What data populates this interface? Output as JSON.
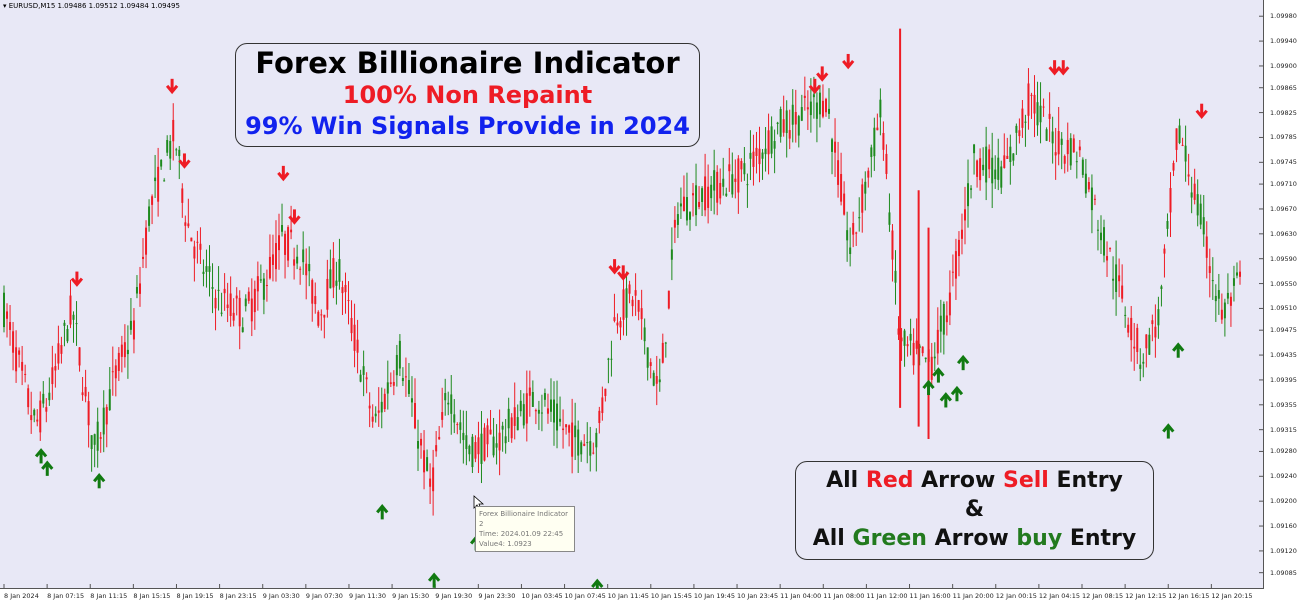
{
  "header": {
    "symbol_line": "▾ EURUSD,M15  1.09486 1.09512 1.09484 1.09495"
  },
  "title_box": {
    "title": "Forex Billionaire Indicator",
    "subtitle1": "100% Non Repaint",
    "subtitle2": "99% Win Signals Provide in 2024"
  },
  "legend_box": {
    "line1": {
      "w1": "All ",
      "red1": "Red",
      "w2": " Arrow ",
      "red2": "Sell",
      "w3": " Entry"
    },
    "line2": "&",
    "line3": {
      "w1": "All ",
      "green1": "Green",
      "w2": " Arrow ",
      "green2": "buy",
      "w3": " Entry"
    }
  },
  "tooltip": {
    "line1": "Forex Billionaire Indicator",
    "line2": "2",
    "line3": "Time: 2024.01.09 22:45",
    "line4": "Value4: 1.0923"
  },
  "colors": {
    "background": "#e8e8f6",
    "bull": "#1e8a1e",
    "bear": "#ee1c25",
    "sell_arrow": "#ee1c25",
    "buy_arrow": "#117a11"
  },
  "chart_data": {
    "type": "candlestick",
    "symbol": "EURUSD",
    "timeframe": "M15",
    "ylim": [
      1.0907,
      1.0999
    ],
    "y_ticks": [
      "1.09980",
      "1.09940",
      "1.09900",
      "1.09865",
      "1.09825",
      "1.09785",
      "1.09745",
      "1.09710",
      "1.09670",
      "1.09630",
      "1.09590",
      "1.09550",
      "1.09510",
      "1.09475",
      "1.09435",
      "1.09395",
      "1.09355",
      "1.09315",
      "1.09280",
      "1.09240",
      "1.09200",
      "1.09160",
      "1.09120",
      "1.09085"
    ],
    "x_ticks": [
      "8 Jan 2024",
      "8 Jan 07:15",
      "8 Jan 11:15",
      "8 Jan 15:15",
      "8 Jan 19:15",
      "8 Jan 23:15",
      "9 Jan 03:30",
      "9 Jan 07:30",
      "9 Jan 11:30",
      "9 Jan 15:30",
      "9 Jan 19:30",
      "9 Jan 23:30",
      "10 Jan 03:45",
      "10 Jan 07:45",
      "10 Jan 11:45",
      "10 Jan 15:45",
      "10 Jan 19:45",
      "10 Jan 23:45",
      "11 Jan 04:00",
      "11 Jan 08:00",
      "11 Jan 12:00",
      "11 Jan 16:00",
      "11 Jan 20:00",
      "12 Jan 00:15",
      "12 Jan 04:15",
      "12 Jan 08:15",
      "12 Jan 12:15",
      "12 Jan 16:15",
      "12 Jan 20:15"
    ],
    "price_path": [
      {
        "t": 0,
        "p": 1.0951
      },
      {
        "t": 0.025,
        "p": 1.0932
      },
      {
        "t": 0.035,
        "p": 1.0936
      },
      {
        "t": 0.055,
        "p": 1.0951
      },
      {
        "t": 0.073,
        "p": 1.0928
      },
      {
        "t": 0.09,
        "p": 1.094
      },
      {
        "t": 0.105,
        "p": 1.0948
      },
      {
        "t": 0.118,
        "p": 1.0967
      },
      {
        "t": 0.138,
        "p": 1.0979
      },
      {
        "t": 0.148,
        "p": 1.0965
      },
      {
        "t": 0.16,
        "p": 1.0958
      },
      {
        "t": 0.175,
        "p": 1.0952
      },
      {
        "t": 0.195,
        "p": 1.095
      },
      {
        "t": 0.21,
        "p": 1.0955
      },
      {
        "t": 0.225,
        "p": 1.0962
      },
      {
        "t": 0.24,
        "p": 1.096
      },
      {
        "t": 0.255,
        "p": 1.095
      },
      {
        "t": 0.27,
        "p": 1.0958
      },
      {
        "t": 0.3,
        "p": 1.0932
      },
      {
        "t": 0.32,
        "p": 1.0944
      },
      {
        "t": 0.345,
        "p": 1.0922
      },
      {
        "t": 0.36,
        "p": 1.0938
      },
      {
        "t": 0.375,
        "p": 1.0928
      },
      {
        "t": 0.4,
        "p": 1.093
      },
      {
        "t": 0.43,
        "p": 1.0937
      },
      {
        "t": 0.46,
        "p": 1.093
      },
      {
        "t": 0.48,
        "p": 1.093
      },
      {
        "t": 0.495,
        "p": 1.095
      },
      {
        "t": 0.51,
        "p": 1.0953
      },
      {
        "t": 0.53,
        "p": 1.0937
      },
      {
        "t": 0.545,
        "p": 1.0967
      },
      {
        "t": 0.57,
        "p": 1.097
      },
      {
        "t": 0.6,
        "p": 1.0973
      },
      {
        "t": 0.625,
        "p": 1.098
      },
      {
        "t": 0.645,
        "p": 1.0982
      },
      {
        "t": 0.665,
        "p": 1.0985
      },
      {
        "t": 0.685,
        "p": 1.096
      },
      {
        "t": 0.71,
        "p": 1.0983
      },
      {
        "t": 0.725,
        "p": 1.0945
      },
      {
        "t": 0.75,
        "p": 1.0942
      },
      {
        "t": 0.765,
        "p": 1.0952
      },
      {
        "t": 0.785,
        "p": 1.0975
      },
      {
        "t": 0.81,
        "p": 1.0973
      },
      {
        "t": 0.83,
        "p": 1.0985
      },
      {
        "t": 0.85,
        "p": 1.0978
      },
      {
        "t": 0.87,
        "p": 1.0976
      },
      {
        "t": 0.89,
        "p": 1.0962
      },
      {
        "t": 0.92,
        "p": 1.0943
      },
      {
        "t": 0.935,
        "p": 1.095
      },
      {
        "t": 0.95,
        "p": 1.098
      },
      {
        "t": 0.965,
        "p": 1.0968
      },
      {
        "t": 0.985,
        "p": 1.095
      },
      {
        "t": 1,
        "p": 1.0955
      }
    ],
    "sell_signals": [
      {
        "t": 0.059,
        "p": 1.0955
      },
      {
        "t": 0.136,
        "p": 1.0986
      },
      {
        "t": 0.146,
        "p": 1.0974
      },
      {
        "t": 0.226,
        "p": 1.0972
      },
      {
        "t": 0.235,
        "p": 1.0965
      },
      {
        "t": 0.494,
        "p": 1.0957
      },
      {
        "t": 0.501,
        "p": 1.0956
      },
      {
        "t": 0.656,
        "p": 1.0986
      },
      {
        "t": 0.662,
        "p": 1.0988
      },
      {
        "t": 0.683,
        "p": 1.099
      },
      {
        "t": 0.85,
        "p": 1.0989
      },
      {
        "t": 0.857,
        "p": 1.0989
      },
      {
        "t": 0.969,
        "p": 1.0982
      }
    ],
    "buy_signals": [
      {
        "t": 0.03,
        "p": 1.0928
      },
      {
        "t": 0.035,
        "p": 1.0926
      },
      {
        "t": 0.077,
        "p": 1.0924
      },
      {
        "t": 0.306,
        "p": 1.0919
      },
      {
        "t": 0.348,
        "p": 1.0908
      },
      {
        "t": 0.382,
        "p": 1.0914
      },
      {
        "t": 0.48,
        "p": 1.0907
      },
      {
        "t": 0.748,
        "p": 1.0939
      },
      {
        "t": 0.756,
        "p": 1.0941
      },
      {
        "t": 0.762,
        "p": 1.0937
      },
      {
        "t": 0.771,
        "p": 1.0938
      },
      {
        "t": 0.776,
        "p": 1.0943
      },
      {
        "t": 0.942,
        "p": 1.0932
      },
      {
        "t": 0.95,
        "p": 1.0945
      }
    ]
  }
}
